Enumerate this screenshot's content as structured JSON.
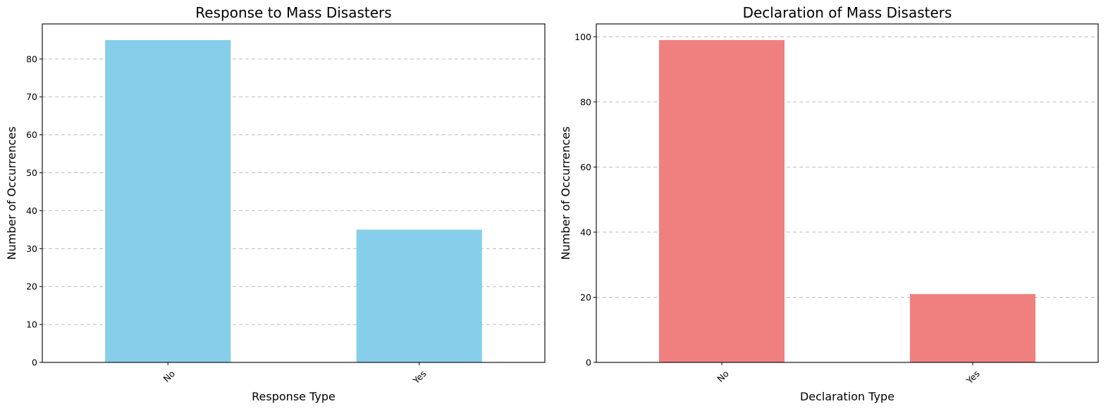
{
  "chart_data": [
    {
      "type": "bar",
      "title": "Response to Mass Disasters",
      "xlabel": "Response Type",
      "ylabel": "Number of Occurrences",
      "categories": [
        "No",
        "Yes"
      ],
      "values": [
        85,
        35
      ],
      "ylim": [
        0,
        89.25
      ],
      "yticks": [
        0,
        10,
        20,
        30,
        40,
        50,
        60,
        70,
        80
      ],
      "bar_color": "#87CEEB",
      "grid": "y-dashed",
      "legend": "none"
    },
    {
      "type": "bar",
      "title": "Declaration of Mass Disasters",
      "xlabel": "Declaration Type",
      "ylabel": "Number of Occurrences",
      "categories": [
        "No",
        "Yes"
      ],
      "values": [
        99,
        21
      ],
      "ylim": [
        0,
        103.95
      ],
      "yticks": [
        0,
        20,
        40,
        60,
        80,
        100
      ],
      "bar_color": "#F08080",
      "grid": "y-dashed",
      "legend": "none"
    }
  ]
}
